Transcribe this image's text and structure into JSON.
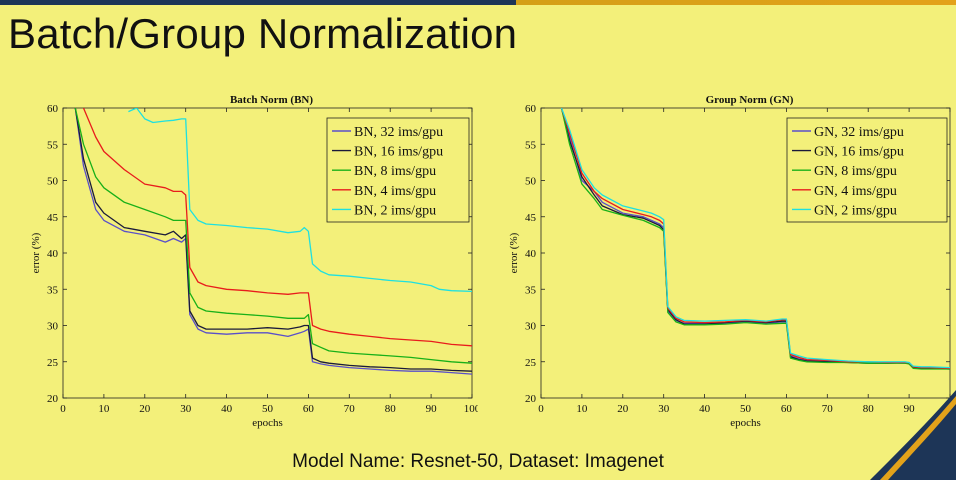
{
  "slide": {
    "title": "Batch/Group Normalization",
    "footer": "Model Name: Resnet-50, Dataset: Imagenet"
  },
  "colors": {
    "background": "#f3f07a",
    "accent_navy": "#1d3557",
    "accent_gold": "#e3a21a"
  },
  "chart_data": [
    {
      "type": "line",
      "title": "Batch Norm (BN)",
      "xlabel": "epochs",
      "ylabel": "error (%)",
      "xlim": [
        0,
        100
      ],
      "ylim": [
        20,
        60
      ],
      "xticks": [
        0,
        10,
        20,
        30,
        40,
        50,
        60,
        70,
        80,
        90,
        100
      ],
      "yticks": [
        20,
        25,
        30,
        35,
        40,
        45,
        50,
        55,
        60
      ],
      "legend_position": "top-right",
      "series": [
        {
          "name": "BN, 32 ims/gpu",
          "color": "#5a4fc9",
          "x": [
            3,
            5,
            8,
            10,
            15,
            20,
            25,
            27,
            29,
            30,
            31,
            33,
            35,
            40,
            45,
            50,
            55,
            58,
            59,
            60,
            61,
            63,
            65,
            70,
            75,
            80,
            85,
            90,
            95,
            100
          ],
          "y": [
            60,
            52,
            46,
            44.5,
            43,
            42.5,
            41.5,
            42,
            41.5,
            42,
            31.5,
            29.5,
            29,
            28.8,
            29,
            29,
            28.5,
            29,
            29.2,
            29.5,
            25,
            24.7,
            24.5,
            24.2,
            24,
            23.8,
            23.7,
            23.7,
            23.5,
            23.3
          ]
        },
        {
          "name": "BN, 16 ims/gpu",
          "color": "#1a1a3a",
          "x": [
            3,
            5,
            8,
            10,
            15,
            20,
            25,
            27,
            29,
            30,
            31,
            33,
            35,
            40,
            45,
            50,
            55,
            58,
            59,
            60,
            61,
            63,
            65,
            70,
            75,
            80,
            85,
            90,
            95,
            100
          ],
          "y": [
            60,
            53,
            47,
            45.5,
            43.5,
            43,
            42.5,
            43,
            42,
            42.5,
            32,
            30,
            29.5,
            29.5,
            29.5,
            29.7,
            29.5,
            29.8,
            30,
            30,
            25.5,
            25,
            24.8,
            24.5,
            24.3,
            24.2,
            24,
            24,
            23.8,
            23.7
          ]
        },
        {
          "name": "BN, 8 ims/gpu",
          "color": "#18b018",
          "x": [
            3,
            5,
            8,
            10,
            15,
            20,
            25,
            27,
            29,
            30,
            31,
            33,
            35,
            40,
            45,
            50,
            55,
            58,
            59,
            60,
            61,
            63,
            65,
            70,
            75,
            80,
            85,
            90,
            95,
            100
          ],
          "y": [
            60,
            55,
            50.5,
            49,
            47,
            46,
            45,
            44.5,
            44.5,
            44.5,
            34.5,
            32.5,
            32,
            31.7,
            31.5,
            31.3,
            31,
            31,
            31,
            31.5,
            27.5,
            27,
            26.5,
            26.2,
            26,
            25.8,
            25.6,
            25.3,
            25,
            24.8
          ]
        },
        {
          "name": "BN, 4 ims/gpu",
          "color": "#e81c1c",
          "x": [
            5,
            8,
            10,
            15,
            20,
            25,
            27,
            29,
            30,
            31,
            33,
            35,
            40,
            45,
            50,
            55,
            58,
            59,
            60,
            61,
            63,
            65,
            70,
            75,
            80,
            85,
            90,
            95,
            100
          ],
          "y": [
            60,
            56,
            54,
            51.5,
            49.5,
            49,
            48.5,
            48.5,
            48,
            38,
            36,
            35.5,
            35,
            34.8,
            34.5,
            34.3,
            34.5,
            34.5,
            34.5,
            30,
            29.5,
            29.2,
            28.8,
            28.5,
            28.2,
            28,
            27.8,
            27.4,
            27.2
          ]
        },
        {
          "name": "BN, 2 ims/gpu",
          "color": "#1ee0e0",
          "x": [
            16,
            18,
            20,
            22,
            25,
            27,
            29,
            30,
            31,
            33,
            35,
            40,
            45,
            50,
            55,
            58,
            59,
            60,
            61,
            63,
            65,
            70,
            75,
            80,
            85,
            90,
            92,
            95,
            100
          ],
          "y": [
            59.5,
            60,
            58.5,
            58,
            58.2,
            58.3,
            58.5,
            58.5,
            46,
            44.5,
            44,
            43.8,
            43.5,
            43.3,
            42.8,
            43,
            43.5,
            43,
            38.5,
            37.5,
            37,
            36.8,
            36.5,
            36.2,
            36,
            35.5,
            35,
            34.8,
            34.7
          ]
        }
      ]
    },
    {
      "type": "line",
      "title": "Group Norm (GN)",
      "xlabel": "epochs",
      "ylabel": "error (%)",
      "xlim": [
        0,
        100
      ],
      "ylim": [
        20,
        60
      ],
      "xticks": [
        0,
        10,
        20,
        30,
        40,
        50,
        60,
        70,
        80,
        90,
        100
      ],
      "yticks": [
        20,
        25,
        30,
        35,
        40,
        45,
        50,
        55,
        60
      ],
      "legend_position": "top-right",
      "series": [
        {
          "name": "GN, 32 ims/gpu",
          "color": "#5a4fc9",
          "x": [
            5,
            7,
            10,
            13,
            15,
            20,
            25,
            27,
            29,
            30,
            31,
            33,
            35,
            40,
            45,
            50,
            55,
            59,
            60,
            61,
            63,
            65,
            70,
            75,
            80,
            85,
            89,
            90,
            91,
            93,
            95,
            100
          ],
          "y": [
            60,
            56,
            50,
            48.5,
            47,
            45.5,
            45,
            44.5,
            44,
            43.5,
            32,
            30.7,
            30.3,
            30.3,
            30.3,
            30.5,
            30.3,
            30.5,
            30.5,
            25.8,
            25.4,
            25.2,
            25.1,
            25,
            24.9,
            24.9,
            24.8,
            24.8,
            24.3,
            24.2,
            24.2,
            24.1
          ]
        },
        {
          "name": "GN, 16 ims/gpu",
          "color": "#1a1a3a",
          "x": [
            5,
            7,
            10,
            13,
            15,
            20,
            25,
            27,
            29,
            30,
            31,
            33,
            35,
            40,
            45,
            50,
            55,
            59,
            60,
            61,
            63,
            65,
            70,
            75,
            80,
            85,
            89,
            90,
            91,
            93,
            95,
            100
          ],
          "y": [
            60,
            55.5,
            50.5,
            48,
            46.5,
            45.3,
            44.8,
            44.3,
            43.8,
            43.2,
            32.2,
            30.8,
            30.2,
            30.2,
            30.4,
            30.6,
            30.4,
            30.6,
            30.6,
            25.7,
            25.3,
            25.1,
            25,
            24.9,
            24.8,
            24.8,
            24.9,
            24.7,
            24.2,
            24.1,
            24.1,
            24
          ]
        },
        {
          "name": "GN, 8 ims/gpu",
          "color": "#18b018",
          "x": [
            5,
            7,
            10,
            13,
            15,
            20,
            25,
            27,
            29,
            30,
            31,
            33,
            35,
            40,
            45,
            50,
            55,
            59,
            60,
            61,
            63,
            65,
            70,
            75,
            80,
            85,
            89,
            90,
            91,
            93,
            95,
            100
          ],
          "y": [
            60,
            55,
            49.5,
            47.5,
            46,
            45.2,
            44.5,
            44,
            43.5,
            43,
            31.8,
            30.5,
            30.1,
            30.1,
            30.2,
            30.4,
            30.2,
            30.3,
            30.3,
            25.5,
            25.2,
            25,
            24.9,
            24.9,
            24.8,
            24.8,
            24.8,
            24.7,
            24.1,
            24,
            24,
            24
          ]
        },
        {
          "name": "GN, 4 ims/gpu",
          "color": "#e81c1c",
          "x": [
            5,
            7,
            10,
            13,
            15,
            20,
            25,
            27,
            29,
            30,
            31,
            33,
            35,
            40,
            45,
            50,
            55,
            59,
            60,
            61,
            63,
            65,
            70,
            75,
            80,
            85,
            89,
            90,
            91,
            93,
            95,
            100
          ],
          "y": [
            60,
            56.5,
            51,
            48.5,
            47.5,
            46,
            45.3,
            45,
            44.5,
            44,
            32.4,
            31,
            30.5,
            30.4,
            30.5,
            30.7,
            30.5,
            30.8,
            30.8,
            26,
            25.6,
            25.3,
            25.2,
            25,
            25,
            24.9,
            24.9,
            24.9,
            24.3,
            24.2,
            24.2,
            24.1
          ]
        },
        {
          "name": "GN, 2 ims/gpu",
          "color": "#1ee0e0",
          "x": [
            5,
            7,
            10,
            13,
            15,
            20,
            25,
            27,
            29,
            30,
            31,
            33,
            35,
            40,
            45,
            50,
            55,
            59,
            60,
            61,
            63,
            65,
            70,
            75,
            80,
            85,
            89,
            90,
            91,
            93,
            95,
            100
          ],
          "y": [
            60,
            57,
            51.5,
            49,
            48,
            46.5,
            45.8,
            45.5,
            45,
            44.6,
            32.6,
            31.2,
            30.7,
            30.6,
            30.7,
            30.8,
            30.6,
            30.9,
            30.9,
            26.2,
            25.8,
            25.5,
            25.3,
            25.1,
            25,
            25,
            25,
            24.9,
            24.4,
            24.3,
            24.3,
            24.2
          ]
        }
      ]
    }
  ]
}
